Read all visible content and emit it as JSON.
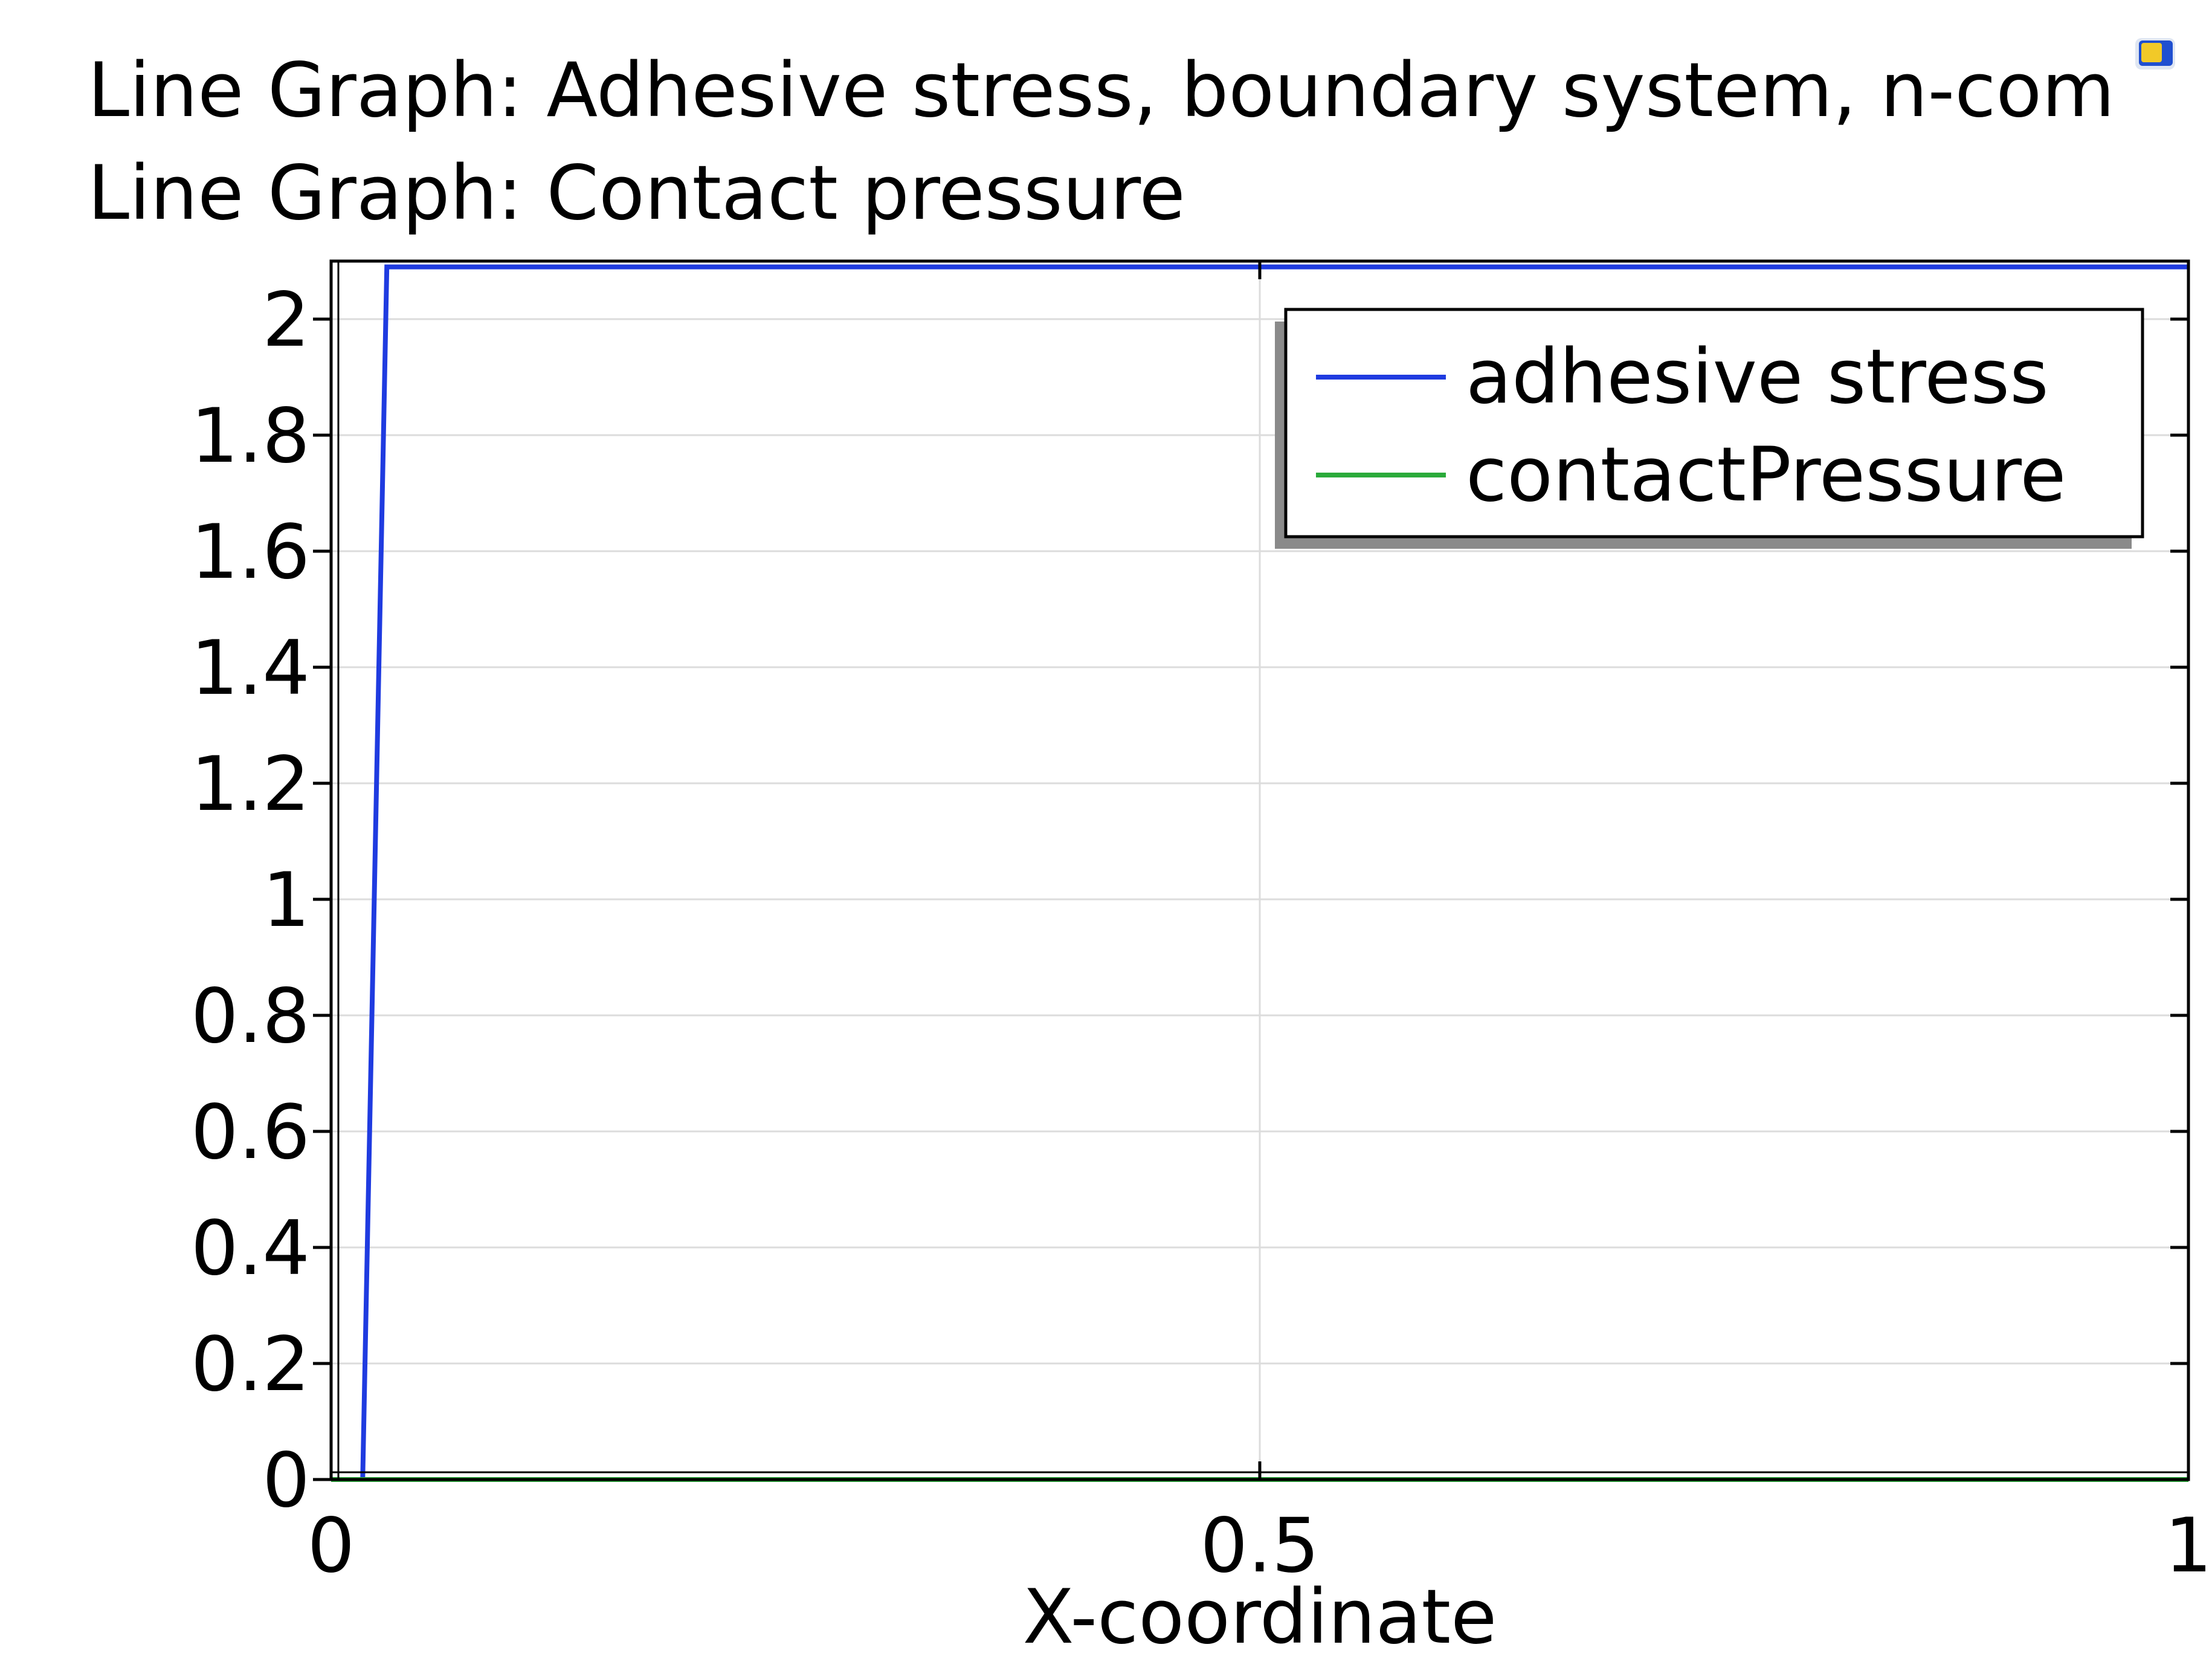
{
  "titles": [
    "Line Graph: Adhesive stress, boundary system, n-com",
    "Line Graph: Contact pressure"
  ],
  "chart_data": {
    "type": "line",
    "xlabel": "X-coordinate",
    "ylabel": "",
    "xlim": [
      0,
      1
    ],
    "ylim": [
      0,
      2.1
    ],
    "xticks": [
      0,
      0.5,
      1
    ],
    "xtick_labels": [
      "0",
      "0.5",
      "1"
    ],
    "yticks": [
      0,
      0.2,
      0.4,
      0.6,
      0.8,
      1,
      1.2,
      1.4,
      1.6,
      1.8,
      2
    ],
    "ytick_labels": [
      "0",
      "0.2",
      "0.4",
      "0.6",
      "0.8",
      "1",
      "1.2",
      "1.4",
      "1.6",
      "1.8",
      "2"
    ],
    "grid": true,
    "legend_position": "top-right",
    "series": [
      {
        "name": "adhesive stress",
        "color": "#1f3be0",
        "x": [
          0,
          0.017,
          0.03,
          1
        ],
        "y": [
          0,
          0,
          2.09,
          2.09
        ]
      },
      {
        "name": "contactPressure",
        "color": "#2aaa3a",
        "x": [
          0,
          1
        ],
        "y": [
          0,
          0
        ]
      }
    ]
  }
}
